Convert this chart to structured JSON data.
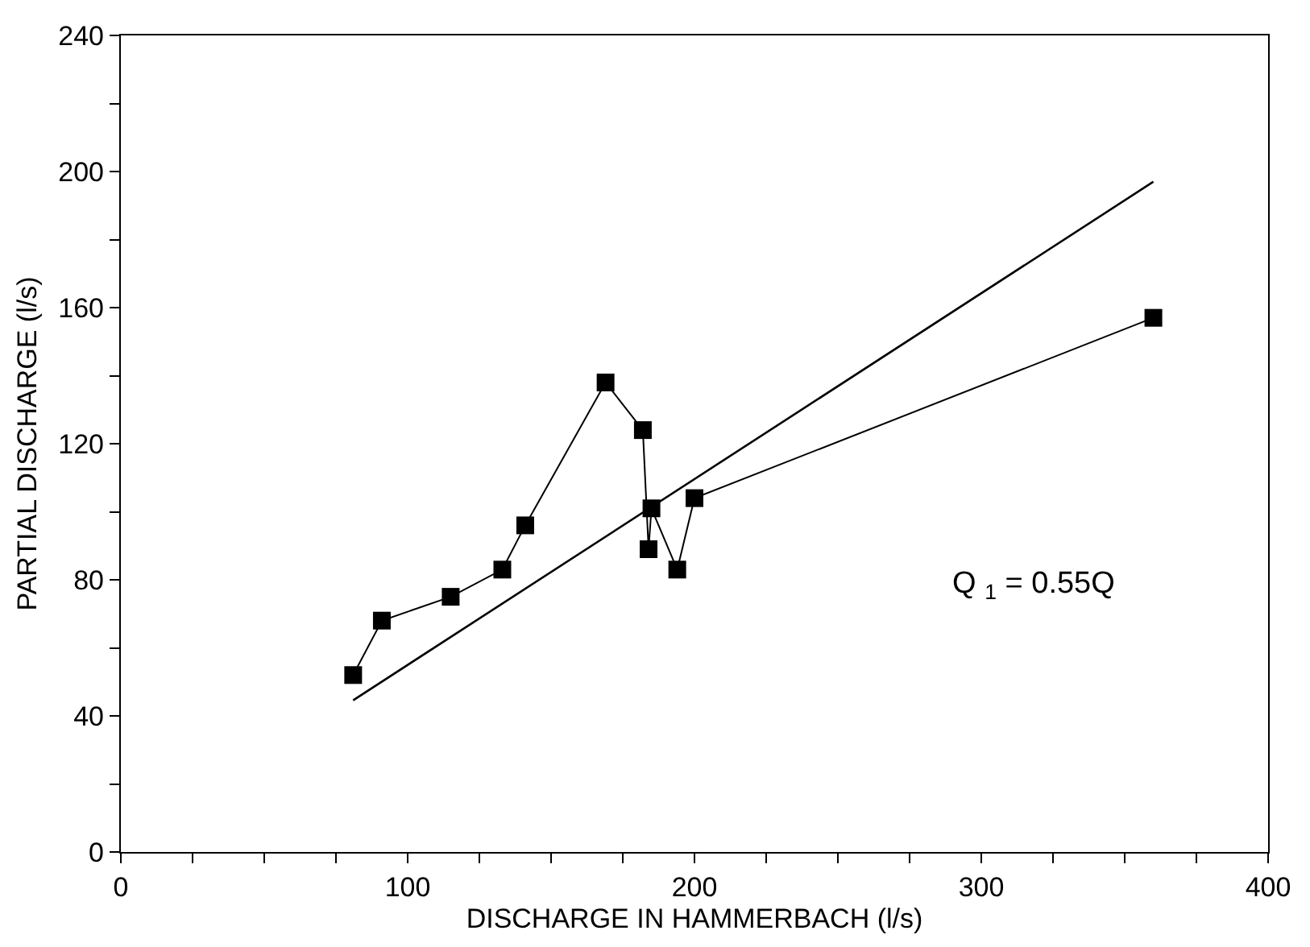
{
  "chart_data": {
    "type": "line",
    "xlabel": "DISCHARGE IN HAMMERBACH (l/s)",
    "ylabel": "PARTIAL DISCHARGE (l/s)",
    "xlim": [
      0,
      400
    ],
    "ylim": [
      0,
      240
    ],
    "xticks": [
      0,
      {
        "value": 25,
        "label": null
      },
      {
        "value": 50,
        "label": null
      },
      {
        "value": 75,
        "label": null
      },
      100,
      {
        "value": 125,
        "label": null
      },
      {
        "value": 150,
        "label": null
      },
      {
        "value": 175,
        "label": null
      },
      200,
      {
        "value": 225,
        "label": null
      },
      {
        "value": 250,
        "label": null
      },
      {
        "value": 275,
        "label": null
      },
      300,
      {
        "value": 325,
        "label": null
      },
      {
        "value": 350,
        "label": null
      },
      {
        "value": 375,
        "label": null
      },
      400
    ],
    "yticks": [
      0,
      {
        "value": 20,
        "label": null
      },
      40,
      {
        "value": 60,
        "label": null
      },
      80,
      {
        "value": 100,
        "label": null
      },
      120,
      {
        "value": 140,
        "label": null
      },
      160,
      {
        "value": 180,
        "label": null
      },
      200,
      {
        "value": 220,
        "label": null
      },
      240
    ],
    "marker": "square",
    "line_style": "solid",
    "annotations": [
      "Q $_{1}$ = 0.55Q"
    ],
    "series": [
      {
        "color": "#000000",
        "x": [
          81,
          91,
          115,
          133,
          141,
          169,
          182,
          184,
          185,
          194,
          200,
          360
        ],
        "values": [
          52,
          68,
          75,
          83,
          96,
          138,
          124,
          89,
          101,
          83,
          104,
          157
        ]
      },
      {
        "type": "line",
        "marker": "none",
        "color": "#000000",
        "x": [
          81,
          360
        ],
        "values": [
          44.6,
          197
        ]
      }
    ]
  }
}
